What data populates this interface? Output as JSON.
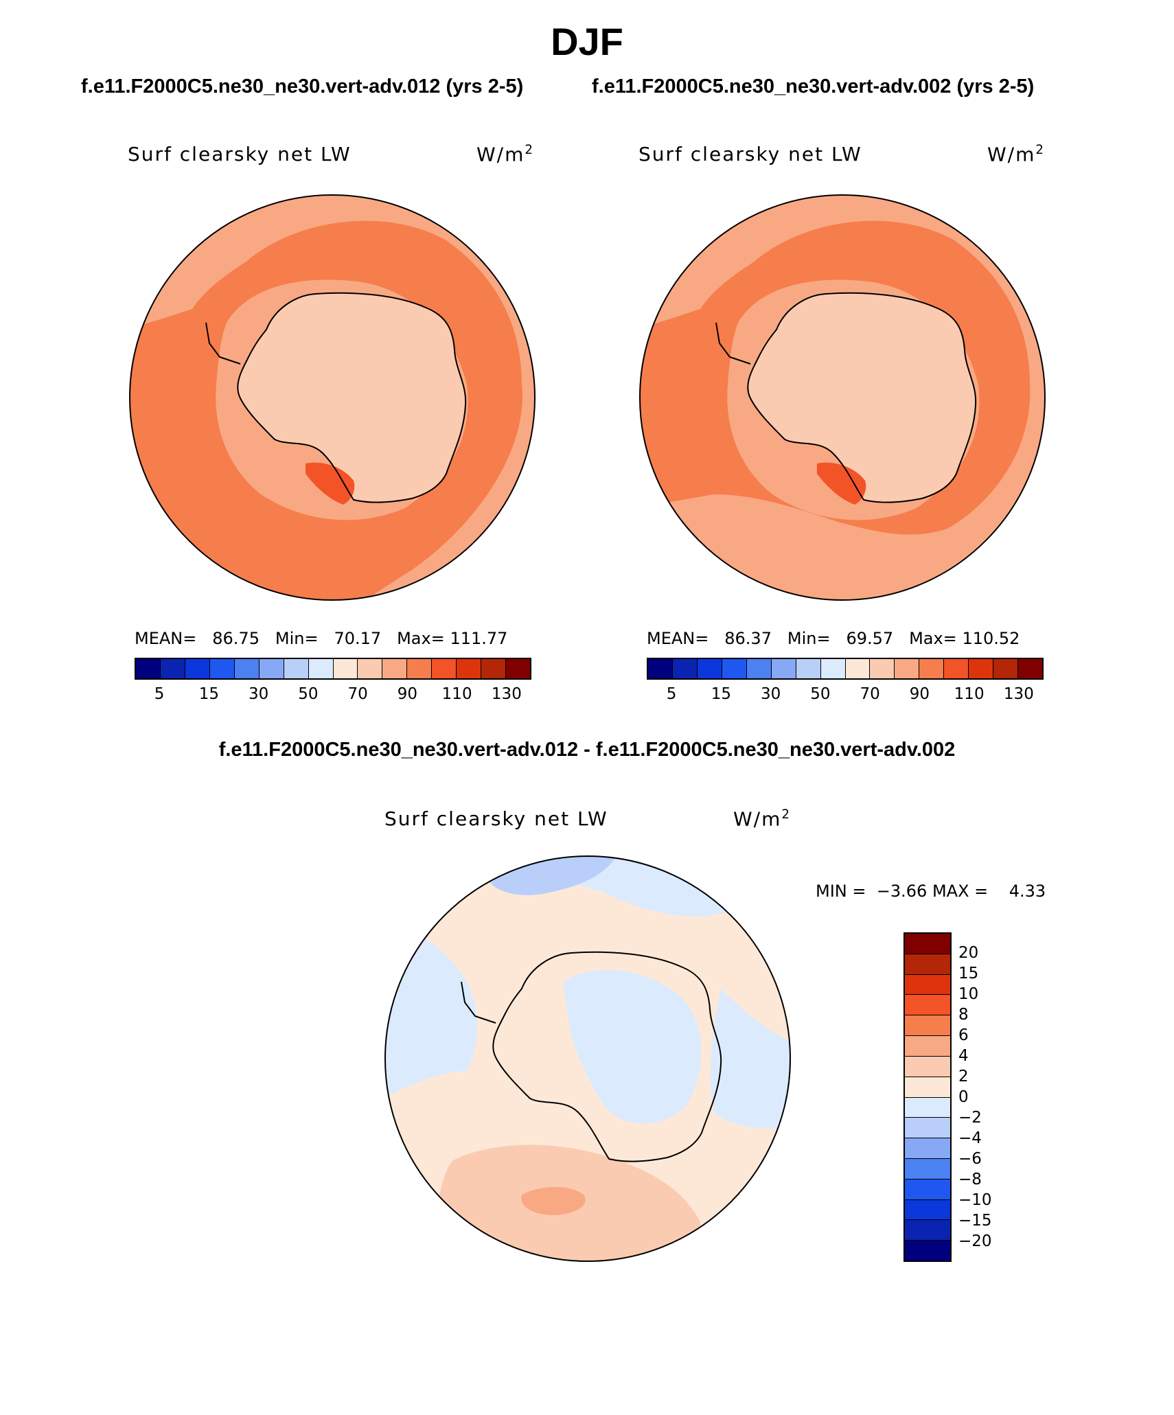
{
  "title": "DJF",
  "panels": [
    {
      "case": "f.e11.F2000C5.ne30_ne30.vert-adv.012 (yrs 2-5)",
      "variable": "Surf clearsky net LW",
      "units_base": "W/m",
      "units_exp": "2",
      "mean_label": "MEAN=",
      "mean": "86.75",
      "min_label": "Min=",
      "min": "70.17",
      "max_label": "Max=",
      "max": "111.77",
      "colorbar_ticks": [
        "5",
        "15",
        "30",
        "50",
        "70",
        "90",
        "110",
        "130"
      ]
    },
    {
      "case": "f.e11.F2000C5.ne30_ne30.vert-adv.002 (yrs 2-5)",
      "variable": "Surf clearsky net LW",
      "units_base": "W/m",
      "units_exp": "2",
      "mean_label": "MEAN=",
      "mean": "86.37",
      "min_label": "Min=",
      "min": "69.57",
      "max_label": "Max=",
      "max": "110.52",
      "colorbar_ticks": [
        "5",
        "15",
        "30",
        "50",
        "70",
        "90",
        "110",
        "130"
      ]
    }
  ],
  "colorbar_colors": [
    "#00007f",
    "#0a23b0",
    "#0a38dc",
    "#1f58f0",
    "#4b81f2",
    "#86a8f5",
    "#b9cffa",
    "#dbebfd",
    "#fde8d8",
    "#fbcbb1",
    "#f8a983",
    "#f67d4c",
    "#f25428",
    "#de340e",
    "#b32607",
    "#800000"
  ],
  "difference": {
    "title": "f.e11.F2000C5.ne30_ne30.vert-adv.012 - f.e11.F2000C5.ne30_ne30.vert-adv.002",
    "variable": "Surf clearsky net LW",
    "units_base": "W/m",
    "units_exp": "2",
    "min_label": "MIN =",
    "min": "−3.66",
    "max_label": "MAX =",
    "max": "4.33",
    "colorbar_ticks": [
      "20",
      "15",
      "10",
      "8",
      "6",
      "4",
      "2",
      "0",
      "−2",
      "−4",
      "−6",
      "−8",
      "−10",
      "−15",
      "−20"
    ],
    "colorbar_colors": [
      "#800000",
      "#b32607",
      "#de340e",
      "#f25428",
      "#f67d4c",
      "#f8a983",
      "#fbcbb1",
      "#fde8d8",
      "#dbebfd",
      "#b9cffa",
      "#86a8f5",
      "#4b81f2",
      "#1f58f0",
      "#0a38dc",
      "#0a23b0",
      "#00007f"
    ]
  },
  "map_colors": {
    "c70": "#fbcbb1",
    "c80": "#f8a983",
    "c90": "#f67d4c",
    "c100": "#f25428",
    "d0p": "#fde8d8",
    "d2p": "#fbcbb1",
    "d4p": "#f8a983",
    "d0n": "#dbebfd",
    "d2n": "#b9cffa",
    "d4n": "#86a8f5",
    "coast": "#000000"
  }
}
